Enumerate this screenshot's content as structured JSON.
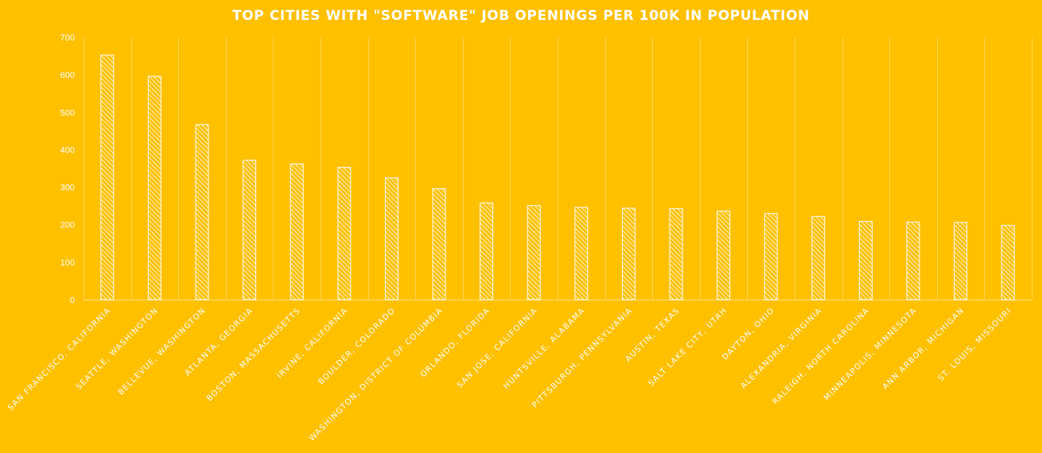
{
  "chart_data": {
    "type": "bar",
    "title": "TOP CITIES WITH \"SOFTWARE\" JOB OPENINGS PER 100K IN POPULATION",
    "xlabel": "",
    "ylabel": "",
    "ylim": [
      0,
      700
    ],
    "yticks": [
      0,
      100,
      200,
      300,
      400,
      500,
      600,
      700
    ],
    "grid": "vertical",
    "legend": "none",
    "categories": [
      "SAN FRANCISCO, CALIFORNIA",
      "SEATTLE, WASHINGTON",
      "BELLEVUE, WASHINGTON",
      "ATLANTA, GEORGIA",
      "BOSTON, MASSACHUSETTS",
      "IRVINE, CALIFORNIA",
      "BOULDER, COLORADO",
      "WASHINGTON, DISTRICT OF COLUMBIA",
      "ORLANDO, FLORIDA",
      "SAN JOSE, CALIFORNIA",
      "HUNTSVILLE, ALABAMA",
      "PITTSBURGH, PENNSYLVANIA",
      "AUSTIN, TEXAS",
      "SALT LAKE CITY, UTAH",
      "DAYTON, OHIO",
      "ALEXANDRIA, VIRGINIA",
      "RALEIGH, NORTH CAROLINA",
      "MINNEAPOLIS, MINNESOTA",
      "ANN ARBOR, MICHIGAN",
      "ST. LOUIS, MISSOURI"
    ],
    "values": [
      653,
      596,
      467,
      372,
      362,
      353,
      325,
      296,
      258,
      251,
      246,
      244,
      243,
      236,
      230,
      222,
      209,
      207,
      206,
      198
    ]
  },
  "colors": {
    "background": "#ffc000",
    "bar_pattern": "white-diagonal-hatch",
    "text": "#ffffff",
    "gridline": "#ffd54d"
  }
}
